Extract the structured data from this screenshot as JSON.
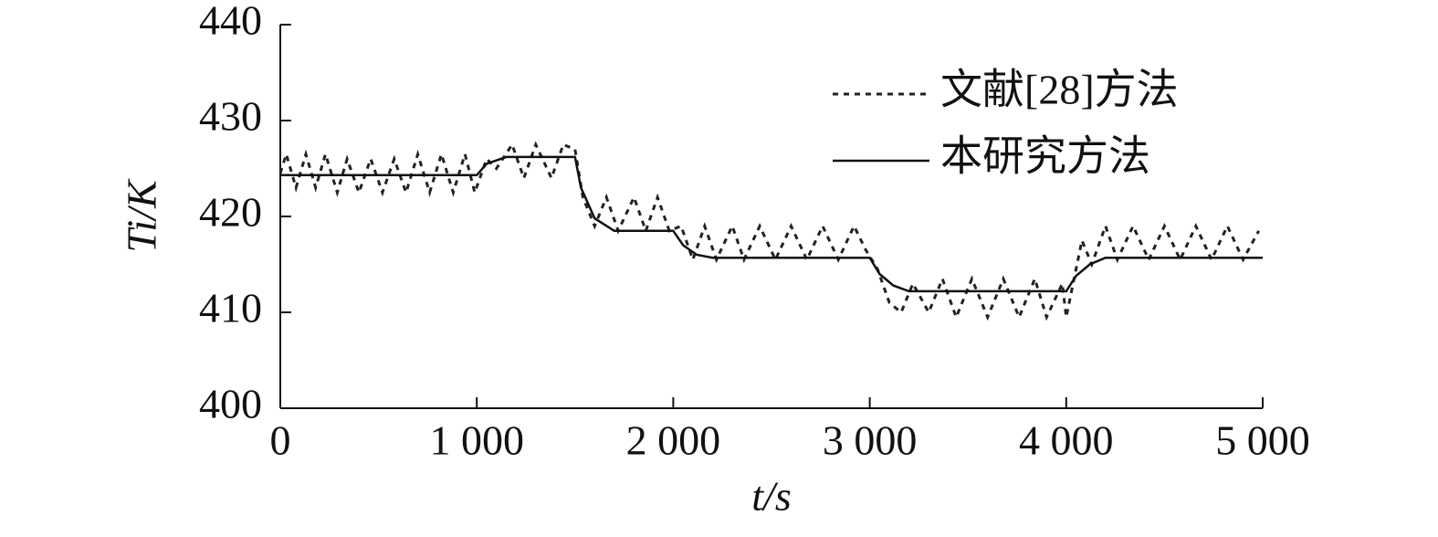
{
  "chart_data": {
    "type": "line",
    "xlabel": "t/s",
    "ylabel": "Ti/K",
    "xlim": [
      0,
      5000
    ],
    "ylim": [
      400,
      440
    ],
    "xticks": [
      0,
      {
        "value": 1000,
        "label": "1 000"
      },
      {
        "value": 2000,
        "label": "2 000"
      },
      {
        "value": 3000,
        "label": "3 000"
      },
      {
        "value": 4000,
        "label": "4 000"
      },
      {
        "value": 5000,
        "label": "5 000"
      }
    ],
    "yticks": [
      400,
      410,
      420,
      430,
      440
    ],
    "legend": "upper right",
    "series": [
      {
        "name": "文献[28]方法",
        "color": "#222222",
        "style": "dotted",
        "x": [
          0,
          30,
          80,
          130,
          180,
          230,
          290,
          340,
          400,
          460,
          520,
          580,
          640,
          700,
          760,
          820,
          880,
          940,
          990,
          1050,
          1100,
          1180,
          1240,
          1300,
          1380,
          1440,
          1500,
          1540,
          1600,
          1660,
          1720,
          1800,
          1860,
          1920,
          1980,
          2040,
          2100,
          2160,
          2220,
          2300,
          2360,
          2440,
          2520,
          2600,
          2680,
          2760,
          2840,
          2920,
          2980,
          3040,
          3100,
          3160,
          3220,
          3300,
          3370,
          3440,
          3520,
          3600,
          3680,
          3760,
          3840,
          3900,
          3980,
          4000,
          4080,
          4130,
          4200,
          4260,
          4340,
          4420,
          4500,
          4580,
          4660,
          4740,
          4820,
          4900,
          4980
        ],
        "values": [
          424.5,
          426.5,
          423,
          426.5,
          423,
          426.5,
          422.5,
          426,
          422.5,
          426,
          422.5,
          426,
          422.5,
          426.5,
          422.5,
          426.5,
          422.5,
          426.5,
          422.5,
          426,
          425,
          427.5,
          424,
          427.5,
          424,
          427.5,
          427,
          422,
          419,
          422,
          418.5,
          422,
          418.5,
          422,
          418.5,
          419,
          415.5,
          419,
          415.5,
          419,
          415.5,
          419,
          415.5,
          419,
          415.5,
          419,
          415.5,
          419,
          416.5,
          414.5,
          411,
          410,
          413,
          410,
          413.5,
          409.5,
          413.5,
          409.5,
          413.5,
          409.5,
          413.5,
          409.5,
          413,
          409.5,
          417.5,
          415,
          419,
          415.5,
          419,
          415.5,
          419,
          415.5,
          419,
          415.5,
          419,
          415.5,
          418.5
        ]
      },
      {
        "name": "本研究方法",
        "color": "#111111",
        "style": "solid",
        "x": [
          0,
          1000,
          1050,
          1150,
          1500,
          1530,
          1600,
          1700,
          2000,
          2050,
          2120,
          2200,
          3000,
          3050,
          3120,
          3200,
          4000,
          4050,
          4120,
          4200,
          5000
        ],
        "values": [
          424.3,
          424.3,
          425.5,
          426.2,
          426.2,
          423,
          419.8,
          418.5,
          418.5,
          417,
          416,
          415.7,
          415.7,
          414,
          412.8,
          412.2,
          412.2,
          413.8,
          415,
          415.7,
          415.7
        ]
      }
    ]
  }
}
